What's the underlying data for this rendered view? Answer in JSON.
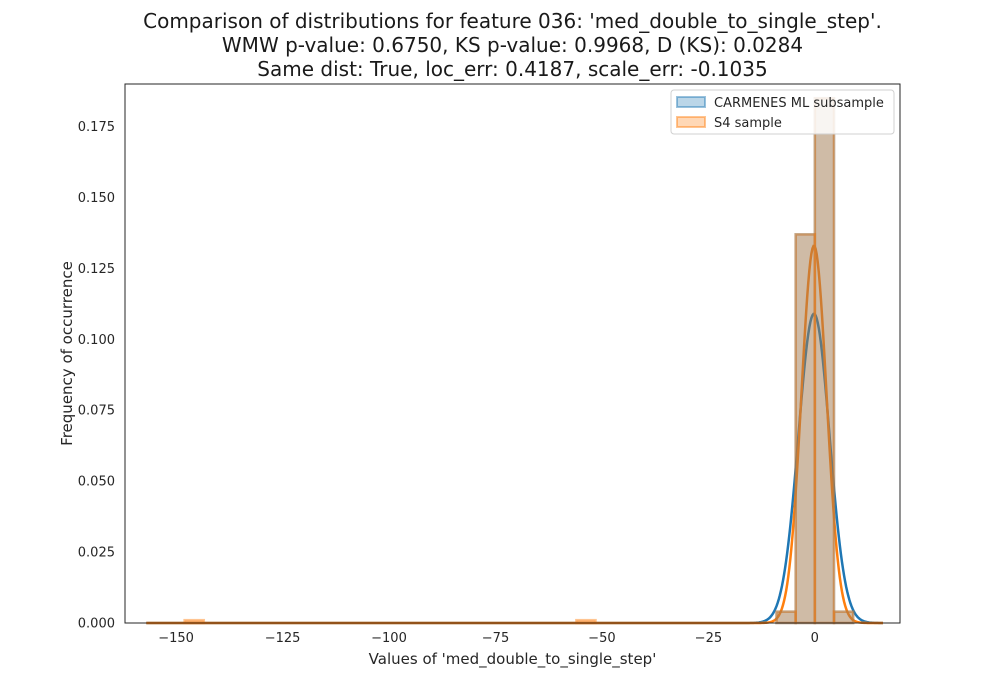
{
  "chart_data": {
    "type": "histogram",
    "title_lines": [
      "Comparison of distributions for feature 036: 'med_double_to_single_step'.",
      "WMW p-value: 0.6750, KS p-value: 0.9968, D (KS): 0.0284",
      "Same dist: True, loc_err: 0.4187, scale_err: -0.1035"
    ],
    "xlabel": "Values of 'med_double_to_single_step'",
    "ylabel": "Frequency of occurrence",
    "xlim": [
      -162,
      20
    ],
    "ylim": [
      0,
      0.19
    ],
    "xticks": [
      -150,
      -125,
      -100,
      -75,
      -50,
      -25,
      0
    ],
    "xtick_labels": [
      "−150",
      "−125",
      "−100",
      "−75",
      "−50",
      "−25",
      "0"
    ],
    "yticks": [
      0.0,
      0.025,
      0.05,
      0.075,
      0.1,
      0.125,
      0.15,
      0.175
    ],
    "ytick_labels": [
      "0.000",
      "0.025",
      "0.050",
      "0.075",
      "0.100",
      "0.125",
      "0.150",
      "0.175"
    ],
    "legend_position": "upper right",
    "grid": false,
    "series": [
      {
        "name": "CARMENES ML subsample",
        "color": "#1f77b4",
        "hist_bins": [
          {
            "x0": -9,
            "x1": -4.5,
            "y": 0.004
          },
          {
            "x0": -4.5,
            "x1": 0,
            "y": 0.137
          },
          {
            "x0": 0,
            "x1": 4.5,
            "y": 0.185
          },
          {
            "x0": 4.5,
            "x1": 9,
            "y": 0.004
          }
        ],
        "kde": {
          "type": "gaussian",
          "mean": -0.2,
          "sd": 3.65,
          "peak": 0.109,
          "x_range": [
            -157,
            16
          ]
        }
      },
      {
        "name": "S4 sample",
        "color": "#ff7f0e",
        "hist_bins": [
          {
            "x0": -148,
            "x1": -143.5,
            "y": 0.001
          },
          {
            "x0": -56,
            "x1": -51.5,
            "y": 0.001
          },
          {
            "x0": -9,
            "x1": -4.5,
            "y": 0.004
          },
          {
            "x0": -4.5,
            "x1": 0,
            "y": 0.137
          },
          {
            "x0": 0,
            "x1": 4.5,
            "y": 0.185
          },
          {
            "x0": 4.5,
            "x1": 9,
            "y": 0.004
          }
        ],
        "kde": {
          "type": "gaussian",
          "mean": -0.2,
          "sd": 2.95,
          "peak": 0.133,
          "x_range": [
            -157,
            16
          ]
        }
      }
    ]
  }
}
